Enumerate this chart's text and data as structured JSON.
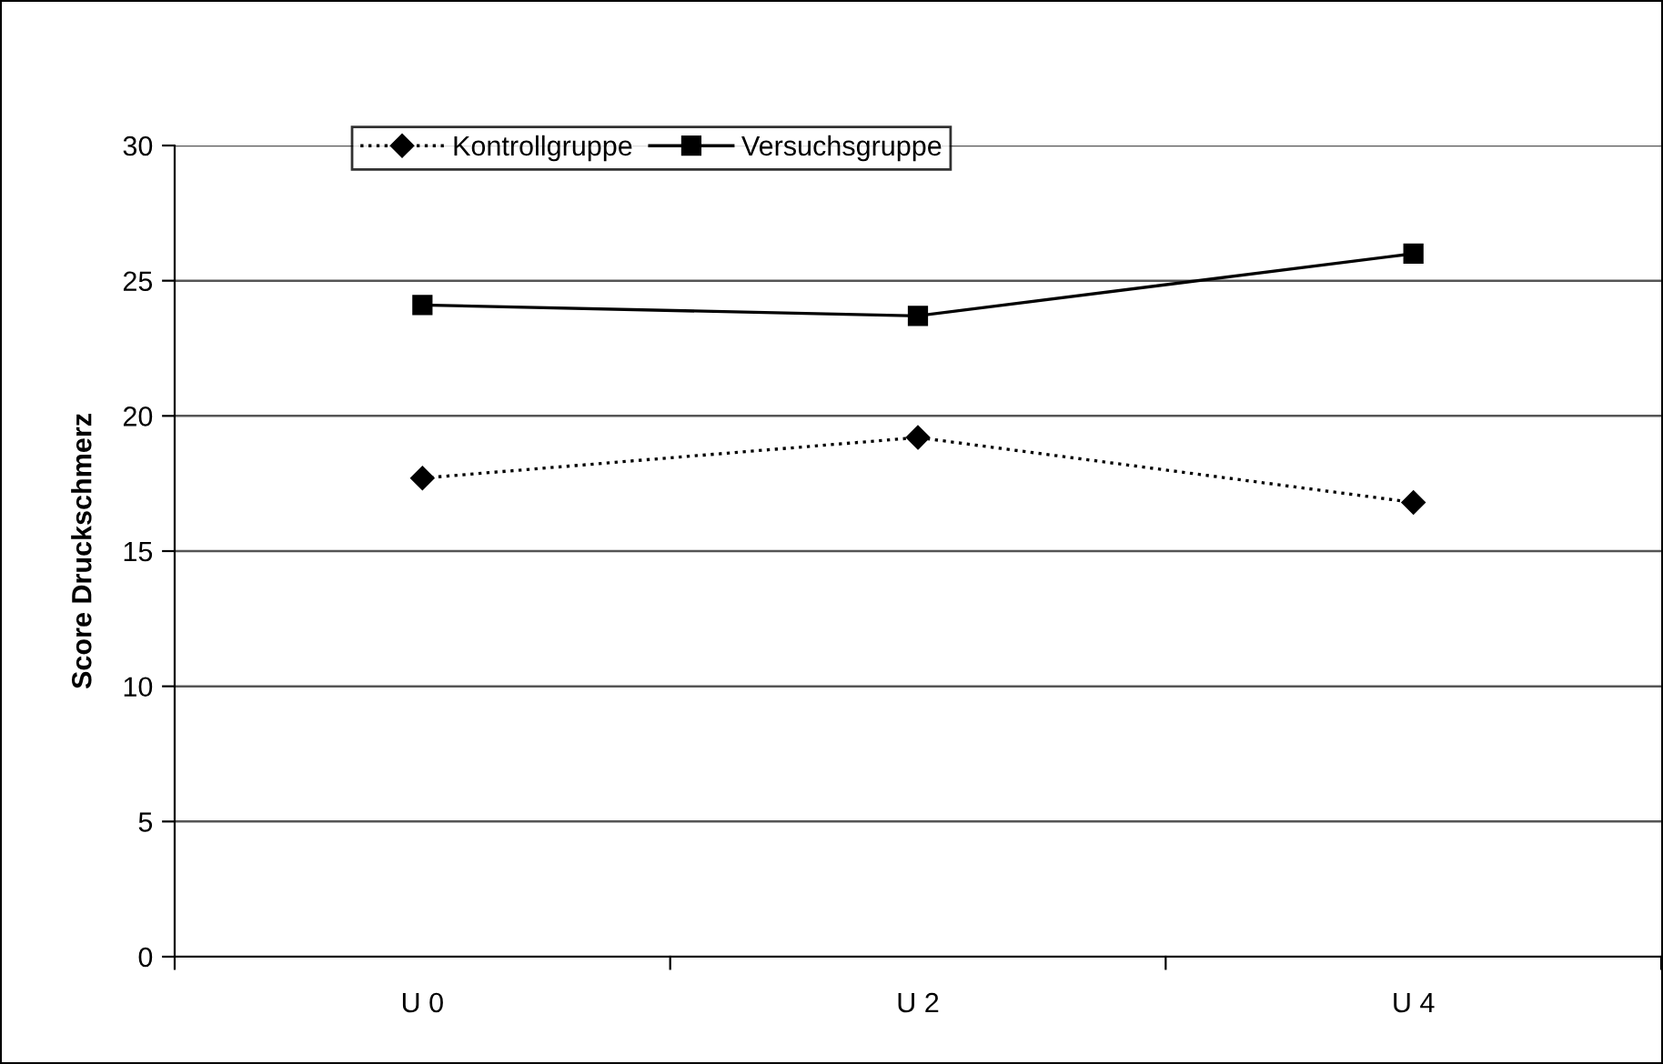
{
  "chart_data": {
    "type": "line",
    "ylabel": "Score Druckschmerz",
    "categories": [
      "U 0",
      "U 2",
      "U 4"
    ],
    "series": [
      {
        "name": "Kontrollgruppe",
        "color": "#000000",
        "marker": "diamond",
        "line_style": "dotted",
        "values": [
          17.7,
          19.2,
          16.8
        ]
      },
      {
        "name": "Versuchsgruppe",
        "color": "#000000",
        "marker": "square",
        "line_style": "solid",
        "values": [
          24.1,
          23.7,
          26.0
        ]
      }
    ],
    "ylim": [
      0,
      30
    ],
    "yticks": [
      0,
      5,
      10,
      15,
      20,
      25,
      30
    ],
    "grid": "y",
    "legend": "top left"
  }
}
